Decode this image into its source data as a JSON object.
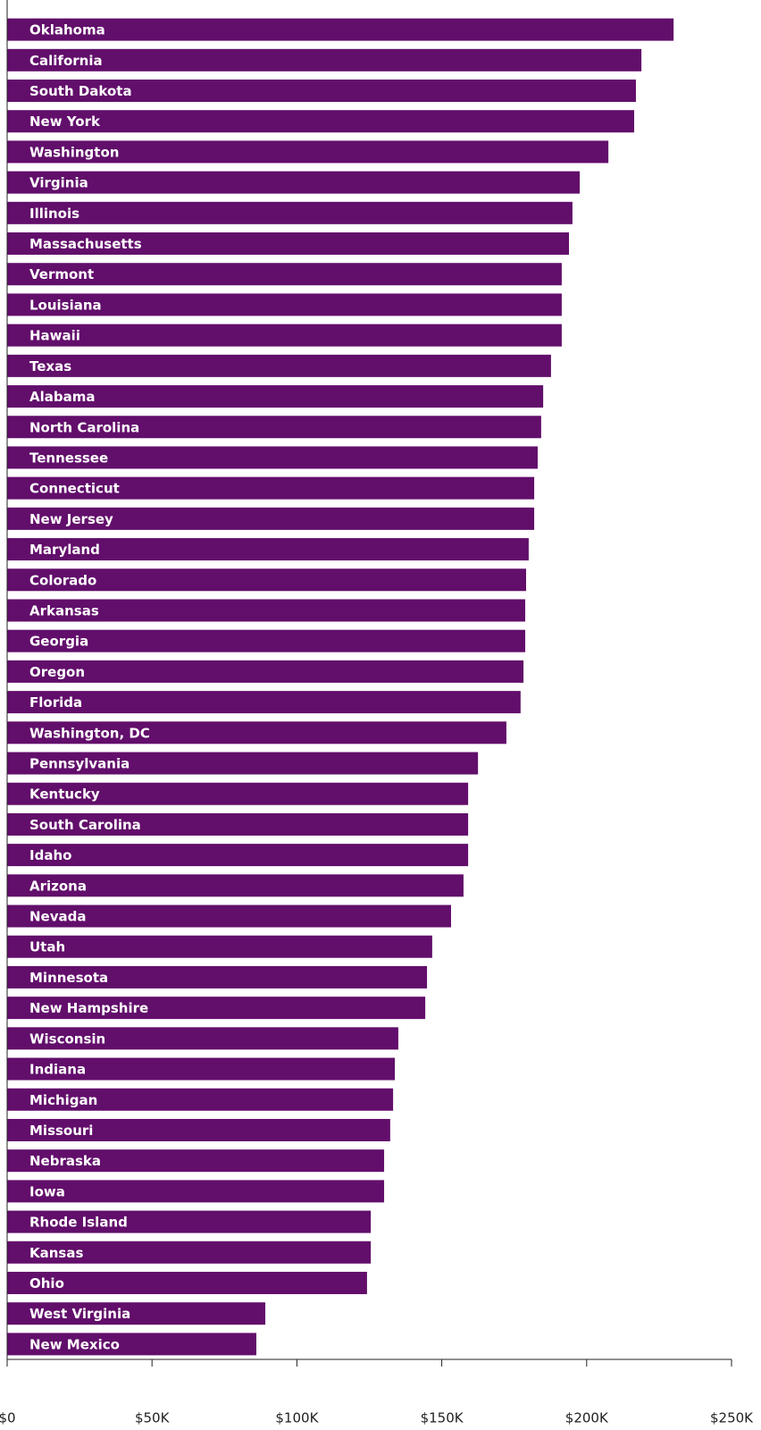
{
  "chart_data": {
    "type": "barh",
    "color": "#620e6b",
    "categories": [
      "Oklahoma",
      "California",
      "South Dakota",
      "New York",
      "Washington",
      "Virginia",
      "Illinois",
      "Massachusetts",
      "Vermont",
      "Louisiana",
      "Hawaii",
      "Texas",
      "Alabama",
      "North Carolina",
      "Tennessee",
      "Connecticut",
      "New Jersey",
      "Maryland",
      "Colorado",
      "Arkansas",
      "Georgia",
      "Oregon",
      "Florida",
      "Washington, DC",
      "Pennsylvania",
      "Kentucky",
      "South Carolina",
      "Idaho",
      "Arizona",
      "Nevada",
      "Utah",
      "Minnesota",
      "New Hampshire",
      "Wisconsin",
      "Indiana",
      "Michigan",
      "Missouri",
      "Nebraska",
      "Iowa",
      "Rhode Island",
      "Kansas",
      "Ohio",
      "West Virginia",
      "New Mexico"
    ],
    "values": [
      230000,
      218900,
      217000,
      216400,
      207500,
      197600,
      195100,
      193900,
      191400,
      191400,
      191400,
      187700,
      185000,
      184300,
      183100,
      181900,
      181900,
      180000,
      179100,
      178800,
      178800,
      178200,
      177200,
      172300,
      162500,
      159100,
      159100,
      159100,
      157500,
      153200,
      146700,
      144900,
      144300,
      135000,
      133800,
      133200,
      132200,
      130100,
      130100,
      125500,
      125500,
      124200,
      89100,
      86000
    ],
    "xlim": [
      0,
      250000
    ],
    "xticks": [
      {
        "value": 0,
        "label": "$0"
      },
      {
        "value": 50000,
        "label": "$50K"
      },
      {
        "value": 100000,
        "label": "$100K"
      },
      {
        "value": 150000,
        "label": "$150K"
      },
      {
        "value": 200000,
        "label": "$200K"
      },
      {
        "value": 250000,
        "label": "$250K"
      }
    ]
  }
}
